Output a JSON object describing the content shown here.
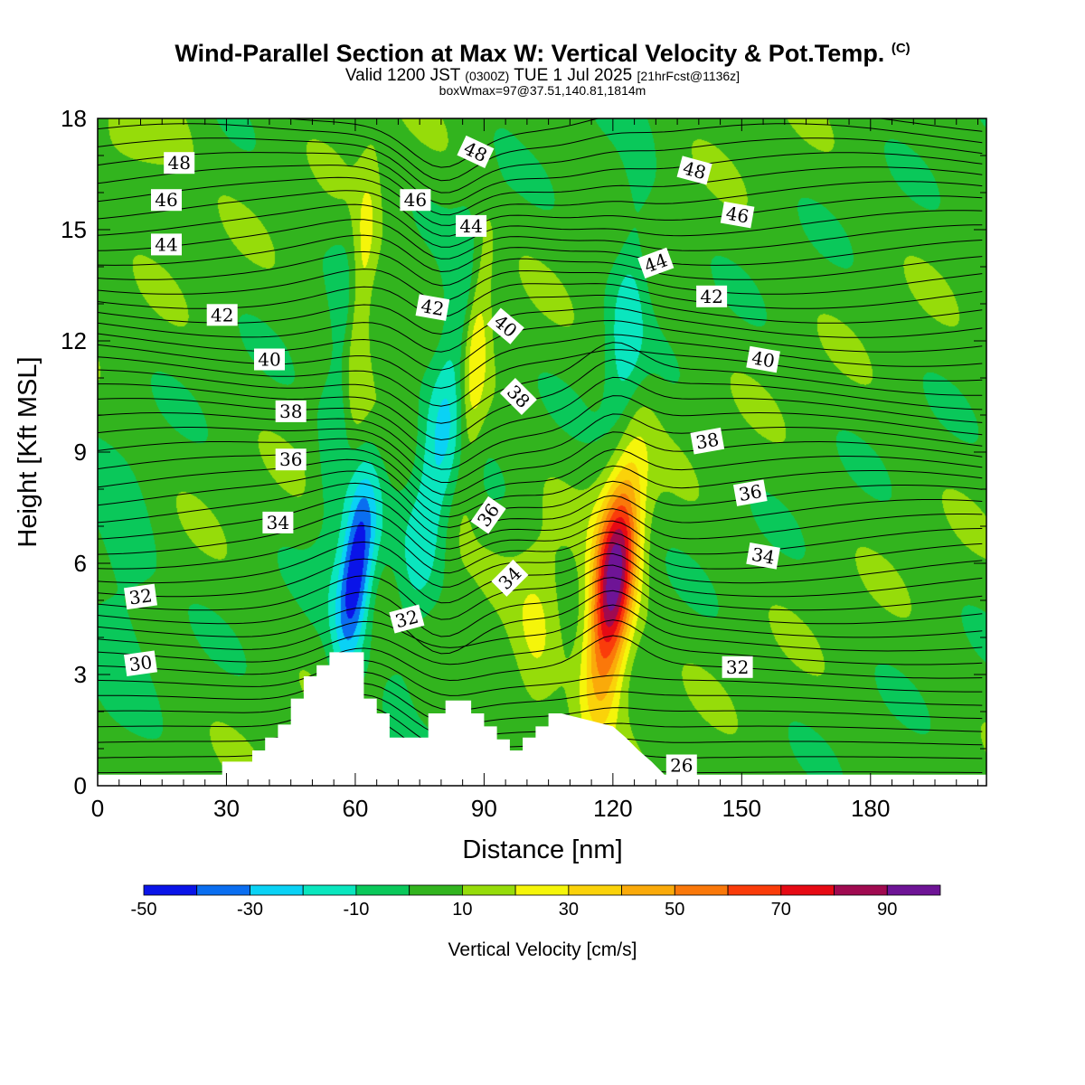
{
  "header": {
    "title_main": "Wind-Parallel Section at Max W: Vertical Velocity & Pot.Temp.",
    "title_copyright": "(C)",
    "valid_prefix": "Valid 1200 JST",
    "valid_utc": "(0300Z)",
    "valid_date": "TUE 1 Jul 2025",
    "forecast_info": "[21hrFcst@1136z]",
    "box_info": "boxWmax=97@37.51,140.81,1814m"
  },
  "chart_data": {
    "type": "contour",
    "xlabel": "Distance [nm]",
    "ylabel": "Height [Kft MSL]",
    "xlim": [
      0,
      207
    ],
    "ylim": [
      0,
      18
    ],
    "x_ticks": [
      0,
      30,
      60,
      90,
      120,
      150,
      180
    ],
    "y_ticks": [
      0,
      3,
      6,
      9,
      12,
      15,
      18
    ],
    "colorbar": {
      "title": "Vertical Velocity [cm/s]",
      "levels": [
        -50,
        -40,
        -30,
        -20,
        -10,
        0,
        10,
        20,
        30,
        40,
        50,
        60,
        70,
        80,
        90,
        100
      ],
      "tick_labels": [
        "-50",
        "-30",
        "-10",
        "10",
        "30",
        "50",
        "70",
        "90"
      ],
      "tick_values": [
        -50,
        -30,
        -10,
        10,
        30,
        50,
        70,
        90
      ],
      "colors": [
        "#0a14e8",
        "#0a6ef0",
        "#0ad2f5",
        "#0ae6be",
        "#0ac85a",
        "#32b41e",
        "#96dc0a",
        "#f5f50a",
        "#fad20a",
        "#faaa0a",
        "#fa780a",
        "#fa3c0a",
        "#e60a14",
        "#a00a50",
        "#6e1496"
      ],
      "background_value": 5
    },
    "features": [
      {
        "kind": "updraft",
        "x": 120,
        "y": 5.5,
        "peak": 95,
        "sx": 3.5,
        "sy": 2.2,
        "tilt": 0.45
      },
      {
        "kind": "downdraft",
        "x": 60,
        "y": 5.8,
        "peak": -55,
        "sx": 2.8,
        "sy": 1.8,
        "tilt": 0.45
      },
      {
        "kind": "updraft",
        "x": 61,
        "y": 13.0,
        "peak": 28,
        "sx": 2.2,
        "sy": 2.6,
        "tilt": 0.3
      },
      {
        "kind": "updraft",
        "x": 88,
        "y": 12.0,
        "peak": 25,
        "sx": 2.2,
        "sy": 2.6,
        "tilt": 0.3
      },
      {
        "kind": "downdraft",
        "x": 80,
        "y": 9.5,
        "peak": -25,
        "sx": 3.5,
        "sy": 4.0,
        "tilt": 0.7
      },
      {
        "kind": "downdraft",
        "x": 57,
        "y": 10.5,
        "peak": -18,
        "sx": 3.0,
        "sy": 3.0,
        "tilt": 0.4
      },
      {
        "kind": "downdraft",
        "x": 123,
        "y": 12.0,
        "peak": -20,
        "sx": 3.0,
        "sy": 3.0,
        "tilt": 0.3
      },
      {
        "kind": "updraft",
        "x": 102,
        "y": 4.0,
        "peak": 15,
        "sx": 4.0,
        "sy": 2.0,
        "tilt": 0.2
      },
      {
        "kind": "downdraft",
        "x": 5,
        "y": 5.5,
        "peak": -12,
        "sx": 6.0,
        "sy": 2.0,
        "tilt": 0.0
      },
      {
        "kind": "updraft",
        "x": 10,
        "y": 17.5,
        "peak": 14,
        "sx": 8.0,
        "sy": 1.0,
        "tilt": 0.0
      }
    ],
    "terrain": {
      "x": [
        0,
        29,
        29,
        36,
        36,
        39,
        39,
        42,
        42,
        45,
        45,
        48,
        48,
        51,
        51,
        54,
        54,
        62,
        62,
        65,
        65,
        68,
        68,
        77,
        77,
        81,
        81,
        87,
        87,
        90,
        90,
        93,
        93,
        96,
        96,
        99,
        99,
        102,
        102,
        105,
        105,
        108,
        108,
        120,
        120,
        123,
        123,
        126,
        126,
        129,
        129,
        132,
        132,
        207
      ],
      "height": [
        0.3,
        0.3,
        0.65,
        0.65,
        0.95,
        0.95,
        1.3,
        1.3,
        1.65,
        1.65,
        2.35,
        2.35,
        2.95,
        2.95,
        3.25,
        3.25,
        3.6,
        3.6,
        2.35,
        2.35,
        1.95,
        1.95,
        1.3,
        1.3,
        1.95,
        1.95,
        2.3,
        2.3,
        1.95,
        1.95,
        1.6,
        1.6,
        1.25,
        1.25,
        0.95,
        0.95,
        1.3,
        1.3,
        1.6,
        1.6,
        1.95,
        1.95,
        1.95,
        1.6,
        1.6,
        1.3,
        1.3,
        0.95,
        0.95,
        0.65,
        0.65,
        0.3,
        0.3,
        0.3
      ]
    },
    "potential_temperature_labels": [
      {
        "text": "48",
        "x": 19,
        "y": 16.8,
        "rot": 0
      },
      {
        "text": "46",
        "x": 16,
        "y": 15.8,
        "rot": 0
      },
      {
        "text": "44",
        "x": 16,
        "y": 14.6,
        "rot": 0
      },
      {
        "text": "42",
        "x": 29,
        "y": 12.7,
        "rot": 0
      },
      {
        "text": "40",
        "x": 40,
        "y": 11.5,
        "rot": 0
      },
      {
        "text": "38",
        "x": 45,
        "y": 10.1,
        "rot": 0
      },
      {
        "text": "36",
        "x": 45,
        "y": 8.8,
        "rot": 0
      },
      {
        "text": "34",
        "x": 42,
        "y": 7.1,
        "rot": 0
      },
      {
        "text": "32",
        "x": 10,
        "y": 5.1,
        "rot": -8
      },
      {
        "text": "30",
        "x": 10,
        "y": 3.3,
        "rot": -8
      },
      {
        "text": "46",
        "x": 74,
        "y": 15.8,
        "rot": 0
      },
      {
        "text": "42",
        "x": 78,
        "y": 12.9,
        "rot": 10
      },
      {
        "text": "48",
        "x": 88,
        "y": 17.1,
        "rot": 25
      },
      {
        "text": "44",
        "x": 87,
        "y": 15.1,
        "rot": 0
      },
      {
        "text": "40",
        "x": 95,
        "y": 12.4,
        "rot": 40
      },
      {
        "text": "38",
        "x": 98,
        "y": 10.5,
        "rot": 45
      },
      {
        "text": "36",
        "x": 91,
        "y": 7.3,
        "rot": -55
      },
      {
        "text": "34",
        "x": 96,
        "y": 5.6,
        "rot": -45
      },
      {
        "text": "32",
        "x": 72,
        "y": 4.5,
        "rot": -15
      },
      {
        "text": "48",
        "x": 139,
        "y": 16.6,
        "rot": 15
      },
      {
        "text": "46",
        "x": 149,
        "y": 15.4,
        "rot": 10
      },
      {
        "text": "44",
        "x": 130,
        "y": 14.1,
        "rot": -20
      },
      {
        "text": "42",
        "x": 143,
        "y": 13.2,
        "rot": 0
      },
      {
        "text": "40",
        "x": 155,
        "y": 11.5,
        "rot": 10
      },
      {
        "text": "38",
        "x": 142,
        "y": 9.3,
        "rot": -10
      },
      {
        "text": "36",
        "x": 152,
        "y": 7.9,
        "rot": -10
      },
      {
        "text": "34",
        "x": 155,
        "y": 6.2,
        "rot": 10
      },
      {
        "text": "32",
        "x": 149,
        "y": 3.2,
        "rot": 0
      },
      {
        "text": "26",
        "x": 136,
        "y": 0.55,
        "rot": 0
      }
    ]
  }
}
